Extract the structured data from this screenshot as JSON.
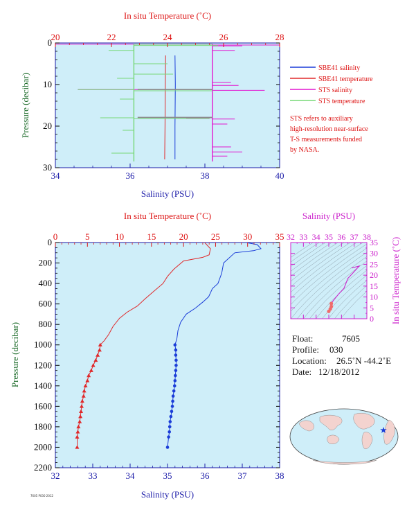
{
  "colors": {
    "plot_bg": "#cfeef9",
    "salinity_axis": "#1a1aa8",
    "temperature_axis": "#dd1111",
    "pressure_axis": "#1f6d2c",
    "sbe_salinity": "#1a3cd8",
    "sbe_temperature": "#e0282a",
    "sts_salinity": "#e316d0",
    "sts_temperature": "#77d877",
    "ts_axis": "#cc22cc",
    "info_text": "#111111"
  },
  "footnote": "7605 P030 2012",
  "chart_data": [
    {
      "id": "near-surface",
      "type": "line",
      "title": "",
      "top_axis_label": "In situ Temperature (˚C)",
      "top_axis_range": [
        20,
        28
      ],
      "top_ticks": [
        "20",
        "22",
        "24",
        "26",
        "28"
      ],
      "x_label": "Salinity (PSU)",
      "x_range": [
        34,
        40
      ],
      "x_ticks": [
        "34",
        "36",
        "38",
        "40"
      ],
      "y_label": "Pressure (decibar)",
      "y_range": [
        0,
        30
      ],
      "y_ticks": [
        "0",
        "10",
        "20",
        "30"
      ],
      "legend": {
        "placement": "right",
        "entries": [
          {
            "label": "SBE41 salinity",
            "color_key": "sbe_salinity"
          },
          {
            "label": "SBE41 temperature",
            "color_key": "sbe_temperature"
          },
          {
            "label": "STS salinity",
            "color_key": "sts_salinity"
          },
          {
            "label": "STS temperature",
            "color_key": "sts_temperature"
          }
        ],
        "note": [
          "STS refers to auxiliary",
          "high-resolution near-surface",
          "T-S measurements funded",
          "by NASA."
        ]
      },
      "series": [
        {
          "name": "SBE41 salinity",
          "axis": "salinity",
          "x": [
            37.2,
            37.21,
            37.2,
            37.2
          ],
          "y": [
            3,
            10,
            20,
            28
          ]
        },
        {
          "name": "SBE41 temperature",
          "axis": "temperature",
          "x": [
            23.93,
            23.92,
            23.91,
            23.9
          ],
          "y": [
            3,
            10,
            20,
            28
          ]
        },
        {
          "name": "STS salinity",
          "axis": "salinity",
          "base": 38.2,
          "y_top": 0.3,
          "y_bottom": 28.5,
          "spikes": [
            [
              0.3,
              34.0
            ],
            [
              0.5,
              40.0
            ],
            [
              0.7,
              39.0
            ],
            [
              1.8,
              38.8
            ],
            [
              9.5,
              38.7
            ],
            [
              10.2,
              38.9
            ],
            [
              11.2,
              34.6
            ],
            [
              11.4,
              39.6
            ],
            [
              18.0,
              37.5
            ],
            [
              18.3,
              38.8
            ],
            [
              19.5,
              38.6
            ],
            [
              25.0,
              38.7
            ],
            [
              26.2,
              39.0
            ],
            [
              27.2,
              38.6
            ]
          ]
        },
        {
          "name": "STS temperature",
          "axis": "temperature",
          "base": 22.8,
          "y_top": 0.3,
          "y_bottom": 28.5,
          "spikes": [
            [
              0.3,
              25.6
            ],
            [
              0.6,
              25.8
            ],
            [
              1.8,
              21.9
            ],
            [
              5.0,
              24.0
            ],
            [
              7.5,
              24.2
            ],
            [
              8.5,
              22.2
            ],
            [
              11.2,
              20.8
            ],
            [
              11.5,
              25.6
            ],
            [
              13.5,
              22.3
            ],
            [
              18.0,
              21.6
            ],
            [
              18.2,
              25.5
            ],
            [
              21.0,
              22.4
            ],
            [
              26.5,
              22.0
            ]
          ]
        }
      ]
    },
    {
      "id": "full-profile",
      "type": "line",
      "title": "",
      "top_axis_label": "In situ Temperature (˚C)",
      "top_axis_range": [
        0,
        35
      ],
      "top_ticks": [
        "0",
        "5",
        "10",
        "15",
        "20",
        "25",
        "30",
        "35"
      ],
      "x_label": "Salinity (PSU)",
      "x_range": [
        32,
        38
      ],
      "x_ticks": [
        "32",
        "33",
        "34",
        "35",
        "36",
        "37",
        "38"
      ],
      "y_label": "Pressure (decibar)",
      "y_range": [
        0,
        2200
      ],
      "y_ticks": [
        "0",
        "200",
        "400",
        "600",
        "800",
        "1000",
        "1200",
        "1400",
        "1600",
        "1800",
        "2000",
        "2200"
      ],
      "series": [
        {
          "name": "Temperature",
          "axis": "temperature",
          "marker": "triangle",
          "marker_from_pressure": 1000,
          "x": [
            23.3,
            24.2,
            24.0,
            23.0,
            20.0,
            18.5,
            17.5,
            16.8,
            15.3,
            14.0,
            12.8,
            11.2,
            10.0,
            9.0,
            8.3,
            7.6,
            7.0,
            6.9,
            6.6,
            6.3,
            5.9,
            5.6,
            5.2,
            5.0,
            4.7,
            4.5,
            4.4,
            4.2,
            4.1,
            4.0,
            3.9,
            3.8,
            3.6,
            3.5,
            3.4,
            3.4
          ],
          "y": [
            0,
            60,
            120,
            145,
            180,
            260,
            330,
            400,
            480,
            550,
            620,
            680,
            740,
            820,
            900,
            960,
            1000,
            1050,
            1100,
            1150,
            1200,
            1250,
            1300,
            1350,
            1400,
            1450,
            1500,
            1550,
            1600,
            1650,
            1700,
            1750,
            1800,
            1850,
            1900,
            2000
          ]
        },
        {
          "name": "Salinity",
          "axis": "salinity",
          "marker": "circle",
          "marker_from_pressure": 1000,
          "x": [
            37.1,
            37.4,
            37.5,
            37.3,
            36.8,
            36.5,
            36.45,
            36.35,
            36.2,
            36.1,
            35.95,
            35.75,
            35.5,
            35.35,
            35.28,
            35.25,
            35.2,
            35.22,
            35.22,
            35.23,
            35.23,
            35.22,
            35.21,
            35.2,
            35.19,
            35.17,
            35.15,
            35.14,
            35.13,
            35.11,
            35.09,
            35.07,
            35.06,
            35.05,
            35.03,
            35.0
          ],
          "y": [
            0,
            20,
            60,
            80,
            100,
            200,
            300,
            400,
            450,
            530,
            580,
            640,
            700,
            780,
            860,
            940,
            1000,
            1050,
            1100,
            1150,
            1200,
            1250,
            1300,
            1350,
            1400,
            1450,
            1500,
            1550,
            1600,
            1650,
            1700,
            1750,
            1800,
            1850,
            1900,
            2000
          ]
        }
      ]
    },
    {
      "id": "ts-diagram",
      "type": "line",
      "title": "",
      "top_axis_label": "Salinity (PSU)",
      "top_ticks": [
        "32",
        "33",
        "34",
        "35",
        "36",
        "37",
        "38"
      ],
      "s_range": [
        32,
        38
      ],
      "right_axis_label": "In situ Temperature (˚C)",
      "right_ticks": [
        "0",
        "5",
        "10",
        "15",
        "20",
        "25",
        "30",
        "35"
      ],
      "t_range": [
        0,
        35
      ],
      "series": [
        {
          "name": "T-S curve",
          "x": [
            36.8,
            37.4,
            36.5,
            36.2,
            35.75,
            35.35,
            35.2,
            35.2,
            35.12,
            35.0
          ],
          "y": [
            23.3,
            24.2,
            18.5,
            14.0,
            11.2,
            8.3,
            7.0,
            5.6,
            4.5,
            3.4
          ]
        }
      ]
    }
  ],
  "float_info": {
    "float_label": "Float:",
    "float_value": "7605",
    "profile_label": "Profile:",
    "profile_value": "030",
    "location_label": "Location:",
    "location_value": "26.5˚N  -44.2˚E",
    "date_label": "Date:",
    "date_value": "12/18/2012"
  },
  "map": {
    "float_position": {
      "lat": 26.5,
      "lon": -44.2
    },
    "marker": "star"
  }
}
